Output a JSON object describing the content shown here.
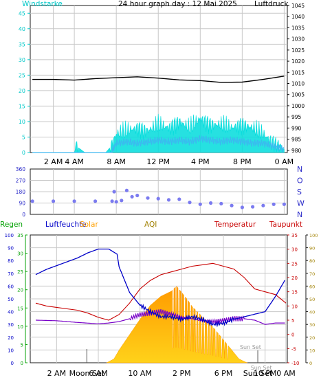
{
  "colors": {
    "frame": "#1a1a1a",
    "grid": "#c8c8c8",
    "wind_axis": "#00c8c8",
    "wind_gust": "#00dcdc",
    "wind_speed": "#3cb8f0",
    "pressure": "#000000",
    "direction": "#7b7bf0",
    "rain": "#00a000",
    "humidity": "#0000c8",
    "solar": "#ffa000",
    "aqi": "#a08000",
    "temperature": "#c80000",
    "dewpoint": "#7800c8",
    "dir_labels": "#2828c8",
    "sun_label": "#9a9a9a"
  },
  "chart_data": [
    {
      "type": "line",
      "title": "24 hour graph day : 12 Mai 2025",
      "left_axis_label": "Windstarke",
      "right_axis_label": "Luftdruck",
      "x_ticks": [
        "2 AM",
        "4 AM",
        "8 AM",
        "12 PM",
        "4 PM",
        "8 PM",
        "0 AM"
      ],
      "x_tick_hours": [
        2,
        4,
        8,
        12,
        16,
        20,
        24
      ],
      "left_ylim": [
        0,
        47.5
      ],
      "left_ticks": [
        0,
        5,
        10,
        15,
        20,
        25,
        30,
        35,
        40,
        45
      ],
      "right_ylim": [
        979,
        1045
      ],
      "right_ticks": [
        980,
        985,
        990,
        995,
        1000,
        1005,
        1010,
        1015,
        1020,
        1025,
        1030,
        1035,
        1040,
        1045
      ],
      "grid": true,
      "series": [
        {
          "key": "pressure",
          "axis": "right",
          "x": [
            0,
            2,
            4,
            6,
            8,
            10,
            12,
            14,
            16,
            18,
            20,
            22,
            24
          ],
          "y": [
            1011.8,
            1011.8,
            1011.5,
            1012.2,
            1012.6,
            1013.0,
            1012.4,
            1011.6,
            1011.3,
            1010.5,
            1010.6,
            1011.8,
            1013.3
          ]
        },
        {
          "key": "wind_gust",
          "axis": "left",
          "x": [
            0,
            2,
            4,
            4.2,
            5,
            6,
            7,
            7.5,
            8,
            9,
            10,
            11,
            12,
            13,
            14,
            15,
            16,
            17,
            18,
            19,
            20,
            21,
            22,
            23,
            24
          ],
          "y": [
            0,
            0,
            0,
            2,
            0,
            0,
            0,
            2,
            6,
            7,
            8,
            7,
            9,
            8,
            10,
            8,
            11,
            9,
            9,
            8,
            9,
            8,
            6,
            3,
            1
          ]
        },
        {
          "key": "wind_speed",
          "axis": "left",
          "x": [
            0,
            2,
            4,
            6,
            7.5,
            8,
            9,
            10,
            11,
            12,
            13,
            14,
            15,
            16,
            17,
            18,
            19,
            20,
            21,
            22,
            23,
            24
          ],
          "y": [
            0,
            0,
            0,
            0,
            0,
            3,
            3.5,
            3,
            3.5,
            4,
            3.5,
            4,
            3.5,
            4.5,
            4,
            3.5,
            4,
            3.5,
            3,
            3,
            2,
            1
          ]
        }
      ]
    },
    {
      "type": "scatter",
      "series_key": "direction",
      "ylim": [
        0,
        360
      ],
      "y_ticks": [
        0,
        90,
        180,
        270,
        360
      ],
      "compass_labels": [
        "N",
        "W",
        "S",
        "O",
        "N"
      ],
      "x": [
        0,
        2,
        4,
        6,
        7.6,
        7.8,
        8,
        8.5,
        9,
        9.5,
        10,
        11,
        12,
        13,
        14,
        15,
        16,
        17,
        18,
        19,
        20,
        21,
        22,
        23,
        24
      ],
      "y": [
        105,
        105,
        105,
        105,
        105,
        180,
        100,
        110,
        190,
        140,
        150,
        130,
        125,
        115,
        120,
        95,
        80,
        90,
        85,
        70,
        55,
        60,
        70,
        80,
        80
      ]
    },
    {
      "type": "line",
      "legend": [
        "Regen",
        "Luftfeuchte",
        "Solar",
        "AQI",
        "Temperatur",
        "Taupunkt"
      ],
      "x_ticks": [
        "2 AM",
        "6 AM",
        "10 AM",
        "2 PM",
        "6 PM",
        "10 PM",
        "0 AM"
      ],
      "x_tick_hours": [
        2,
        6,
        10,
        14,
        18,
        22,
        24
      ],
      "rain_ylim": [
        0,
        100
      ],
      "rain_ticks": [
        0,
        10,
        20,
        30,
        40,
        50,
        60,
        70,
        80,
        90,
        100
      ],
      "humidity_ylim": [
        0,
        35
      ],
      "humidity_ticks": [
        0,
        5,
        10,
        15,
        20,
        25,
        30,
        35
      ],
      "temp_ylim": [
        -10,
        35
      ],
      "temp_ticks": [
        -10,
        -5,
        0,
        5,
        10,
        15,
        20,
        25,
        30,
        35
      ],
      "solar_ylim": [
        0,
        100
      ],
      "solar_ticks": [
        0,
        10,
        20,
        30,
        40,
        50,
        60,
        70,
        80,
        90,
        100
      ],
      "annotations": [
        {
          "text": "Moon Set",
          "hour": 4.9
        },
        {
          "text": "Sun Set",
          "hour": 20.6
        },
        {
          "text": "Sun Set",
          "hour": 21.3
        },
        {
          "text": "Sun Set",
          "hour": 21.9
        }
      ],
      "series": [
        {
          "key": "humidity",
          "axis": "rain",
          "x": [
            0,
            1,
            2,
            3,
            4,
            5,
            6,
            7,
            7.8,
            8,
            9,
            10,
            11,
            12,
            13,
            14,
            15,
            16,
            17,
            18,
            19,
            20,
            21,
            22,
            22.5,
            23,
            24
          ],
          "y": [
            69,
            73,
            76,
            79,
            82,
            86,
            89,
            89,
            85,
            75,
            55,
            45,
            40,
            36,
            36,
            34,
            36,
            34,
            30,
            31,
            34,
            36,
            38,
            40,
            46,
            52,
            66
          ]
        },
        {
          "key": "temperature",
          "axis": "temp",
          "x": [
            0,
            1,
            2,
            3,
            4,
            5,
            6,
            7,
            8,
            9,
            10,
            11,
            12,
            13,
            14,
            15,
            16,
            17,
            18,
            19,
            20,
            21,
            22,
            23,
            24
          ],
          "y": [
            11,
            10,
            9.5,
            9,
            8.5,
            7.5,
            6,
            5,
            7,
            11,
            16,
            19,
            21,
            22,
            23,
            24,
            24.5,
            25,
            24,
            23,
            20,
            16,
            15,
            14,
            11
          ]
        },
        {
          "key": "dewpoint",
          "axis": "temp",
          "x": [
            0,
            2,
            4,
            6,
            7,
            8,
            9,
            10,
            11,
            12,
            13,
            14,
            15,
            16,
            17,
            18,
            19,
            20,
            21,
            22,
            23,
            24
          ],
          "y": [
            5,
            4.8,
            4.2,
            3.7,
            4,
            4.5,
            5.5,
            7,
            7.5,
            8,
            7,
            6,
            5.5,
            4.8,
            4.5,
            4.8,
            5.5,
            5.5,
            5,
            3.5,
            4,
            4
          ]
        },
        {
          "key": "solar",
          "axis": "solar",
          "x": [
            6.8,
            7.5,
            8,
            9,
            10,
            11,
            12,
            13,
            13.5,
            14,
            14.5,
            15,
            16,
            17,
            18,
            19,
            19.5,
            20,
            20.3
          ],
          "y": [
            0,
            3,
            10,
            22,
            34,
            45,
            52,
            56,
            60,
            55,
            50,
            44,
            36,
            28,
            18,
            8,
            3,
            1,
            0
          ]
        }
      ]
    }
  ]
}
